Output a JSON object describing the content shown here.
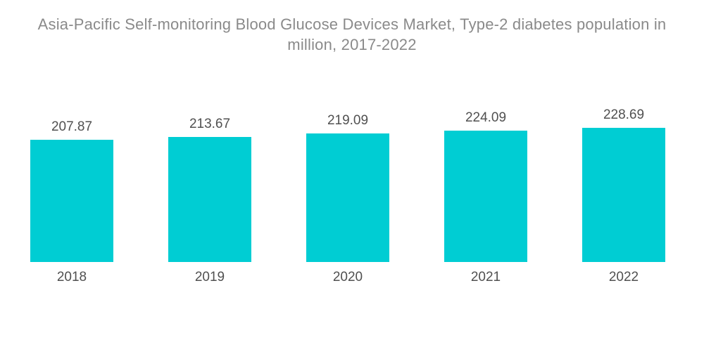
{
  "title": "Asia-Pacific Self-monitoring Blood Glucose Devices Market, Type-2 diabetes population in million, 2017-2022",
  "colors": {
    "bar": "#00cdd3",
    "value_label": "#505050",
    "title": "#8a8a8a",
    "background": "#ffffff"
  },
  "chart_data": {
    "type": "bar",
    "title": "Asia-Pacific Self-monitoring Blood Glucose Devices Market, Type-2 diabetes population in million, 2017-2022",
    "categories": [
      "2018",
      "2019",
      "2020",
      "2021",
      "2022"
    ],
    "values": [
      207.87,
      213.67,
      219.09,
      224.09,
      228.69
    ],
    "value_labels": [
      "207.87",
      "213.67",
      "219.09",
      "224.09",
      "228.69"
    ],
    "xlabel": "",
    "ylabel": "",
    "ylim": [
      0,
      230
    ],
    "grid": false,
    "legend": "none",
    "axes_visible": false,
    "data_labels_position": "above-bar"
  }
}
